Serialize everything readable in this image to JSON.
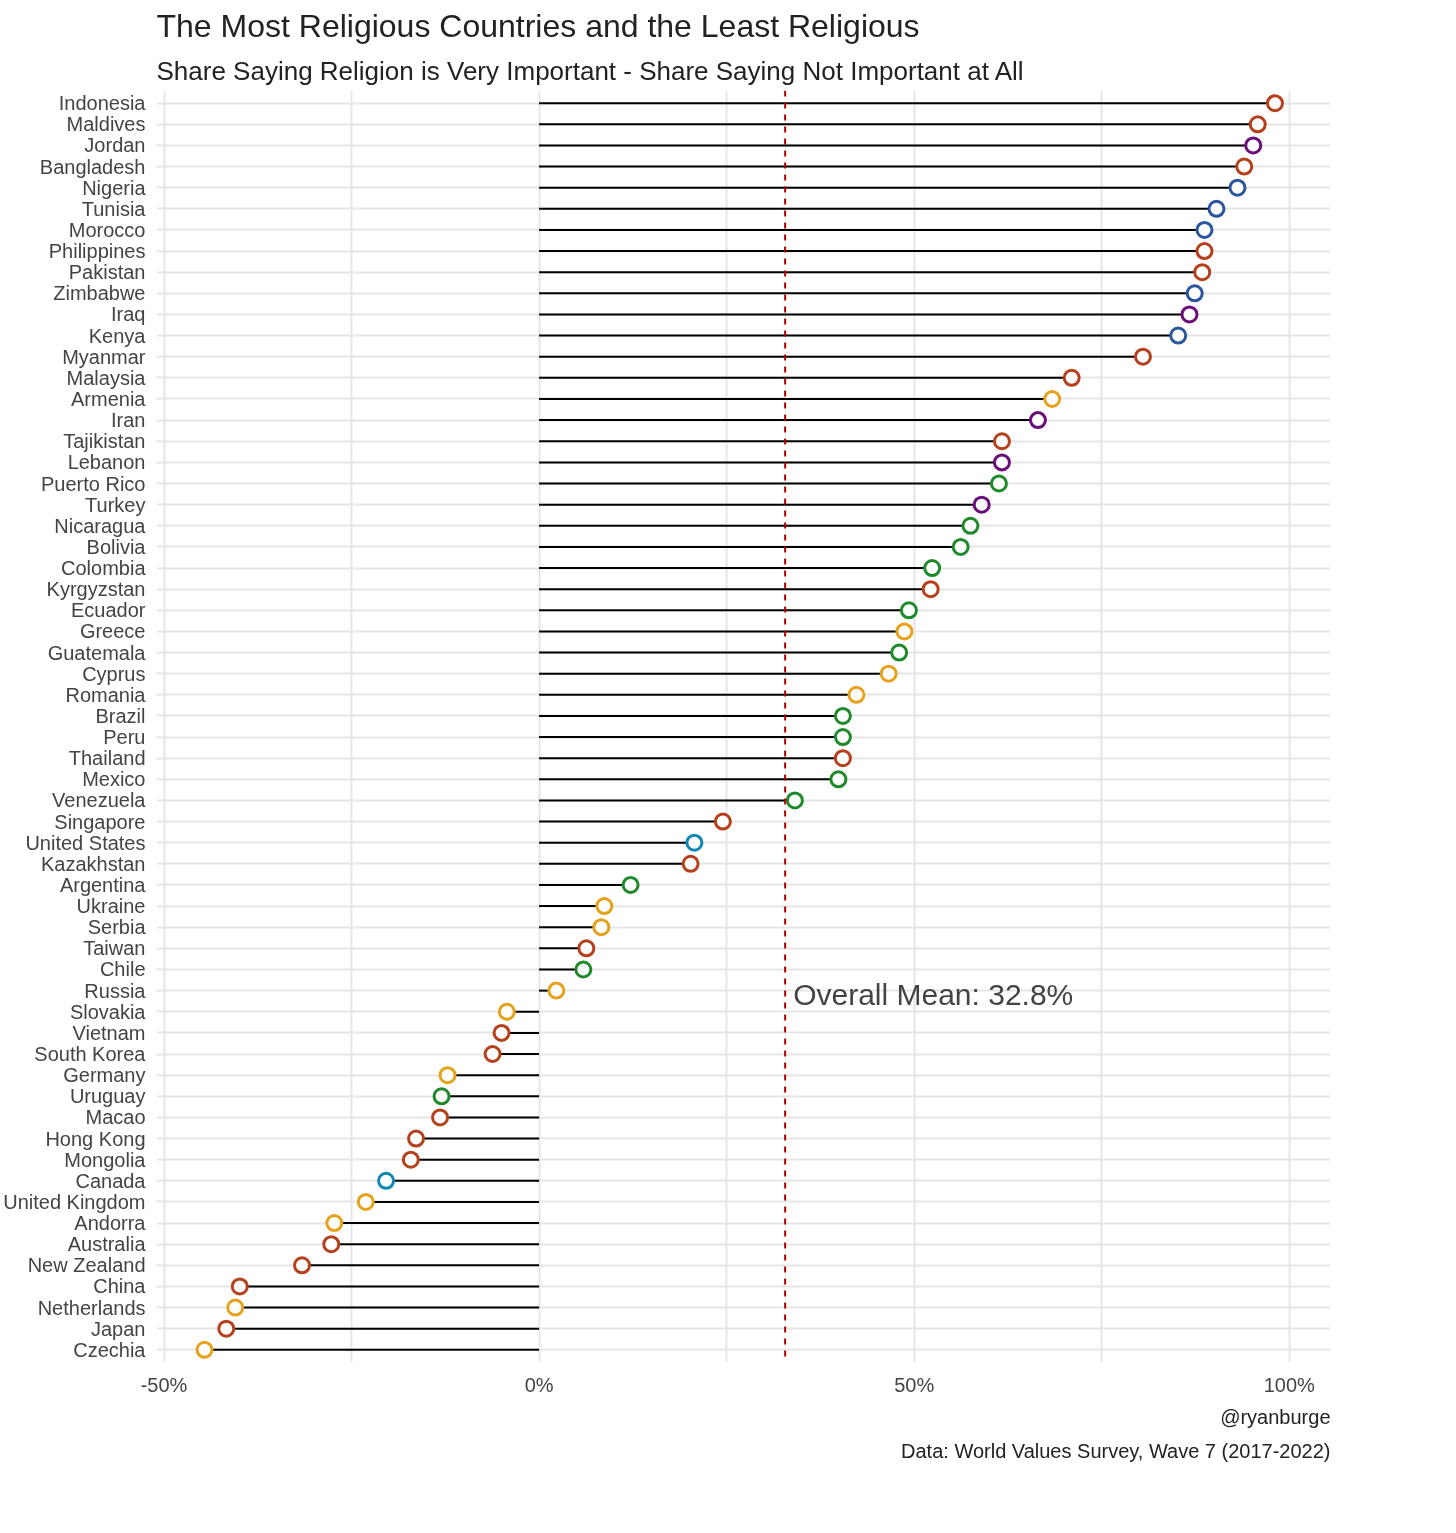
{
  "chart_data": {
    "type": "lollipop",
    "orientation": "horizontal",
    "title": "The Most Religious Countries and the Least Religious",
    "subtitle": "Share Saying Religion is Very Important - Share Saying Not Important at All",
    "categories": [
      "Indonesia",
      "Maldives",
      "Jordan",
      "Bangladesh",
      "Nigeria",
      "Tunisia",
      "Morocco",
      "Philippines",
      "Pakistan",
      "Zimbabwe",
      "Iraq",
      "Kenya",
      "Myanmar",
      "Malaysia",
      "Armenia",
      "Iran",
      "Tajikistan",
      "Lebanon",
      "Puerto Rico",
      "Turkey",
      "Nicaragua",
      "Bolivia",
      "Colombia",
      "Kyrgyzstan",
      "Ecuador",
      "Greece",
      "Guatemala",
      "Cyprus",
      "Romania",
      "Brazil",
      "Peru",
      "Thailand",
      "Mexico",
      "Venezuela",
      "Singapore",
      "United States",
      "Kazakhstan",
      "Argentina",
      "Ukraine",
      "Serbia",
      "Taiwan",
      "Chile",
      "Russia",
      "Slovakia",
      "Vietnam",
      "South Korea",
      "Germany",
      "Uruguay",
      "Macao",
      "Hong Kong",
      "Mongolia",
      "Canada",
      "United Kingdom",
      "Andorra",
      "Australia",
      "New Zealand",
      "China",
      "Netherlands",
      "Japan",
      "Czechia"
    ],
    "values": [
      98.1,
      95.8,
      95.2,
      94.0,
      93.1,
      90.3,
      88.7,
      88.7,
      88.4,
      87.4,
      86.7,
      85.2,
      80.5,
      71.0,
      68.4,
      66.5,
      61.7,
      61.7,
      61.3,
      59.0,
      57.5,
      56.2,
      52.4,
      52.2,
      49.3,
      48.7,
      48.0,
      46.6,
      42.3,
      40.5,
      40.5,
      40.5,
      39.9,
      34.1,
      24.5,
      20.7,
      20.2,
      12.2,
      8.7,
      8.3,
      6.3,
      5.9,
      2.3,
      -4.3,
      -5.0,
      -6.2,
      -12.2,
      -13.0,
      -13.2,
      -16.4,
      -17.1,
      -20.4,
      -23.1,
      -27.3,
      -27.7,
      -31.6,
      -39.9,
      -40.5,
      -41.7,
      -44.6
    ],
    "colors": [
      "#b5401c",
      "#b5401c",
      "#6a0f7a",
      "#b5401c",
      "#2c55a0",
      "#2c55a0",
      "#2c55a0",
      "#b5401c",
      "#b5401c",
      "#2c55a0",
      "#6a0f7a",
      "#2c55a0",
      "#b5401c",
      "#b5401c",
      "#e6a21c",
      "#6a0f7a",
      "#b5401c",
      "#6a0f7a",
      "#1f8a2b",
      "#6a0f7a",
      "#1f8a2b",
      "#1f8a2b",
      "#1f8a2b",
      "#b5401c",
      "#1f8a2b",
      "#e6a21c",
      "#1f8a2b",
      "#e6a21c",
      "#e6a21c",
      "#1f8a2b",
      "#1f8a2b",
      "#b5401c",
      "#1f8a2b",
      "#1f8a2b",
      "#b5401c",
      "#1287b3",
      "#b5401c",
      "#1f8a2b",
      "#e6a21c",
      "#e6a21c",
      "#b5401c",
      "#1f8a2b",
      "#e6a21c",
      "#e6a21c",
      "#b5401c",
      "#b5401c",
      "#e6a21c",
      "#1f8a2b",
      "#b5401c",
      "#b5401c",
      "#b5401c",
      "#1287b3",
      "#e6a21c",
      "#e6a21c",
      "#b5401c",
      "#b5401c",
      "#b5401c",
      "#e6a21c",
      "#b5401c",
      "#e6a21c"
    ],
    "xlim": [
      -51,
      105.5
    ],
    "xticks": [
      {
        "value": -50,
        "label": "-50%"
      },
      {
        "value": -25,
        "label": null
      },
      {
        "value": 0,
        "label": "0%"
      },
      {
        "value": 25,
        "label": null
      },
      {
        "value": 50,
        "label": "50%"
      },
      {
        "value": 75,
        "label": null
      },
      {
        "value": 100,
        "label": "100%"
      }
    ],
    "grid": true,
    "marker": "circle",
    "ref_lines": [
      {
        "axis": "x",
        "value": 32.8,
        "label": "Overall Mean: 32.8%",
        "color": "#b00000",
        "line_style": "dashed"
      }
    ],
    "annotations": [
      "@ryanburge",
      "Data: World Values Survey, Wave 7 (2017-2022)"
    ]
  }
}
